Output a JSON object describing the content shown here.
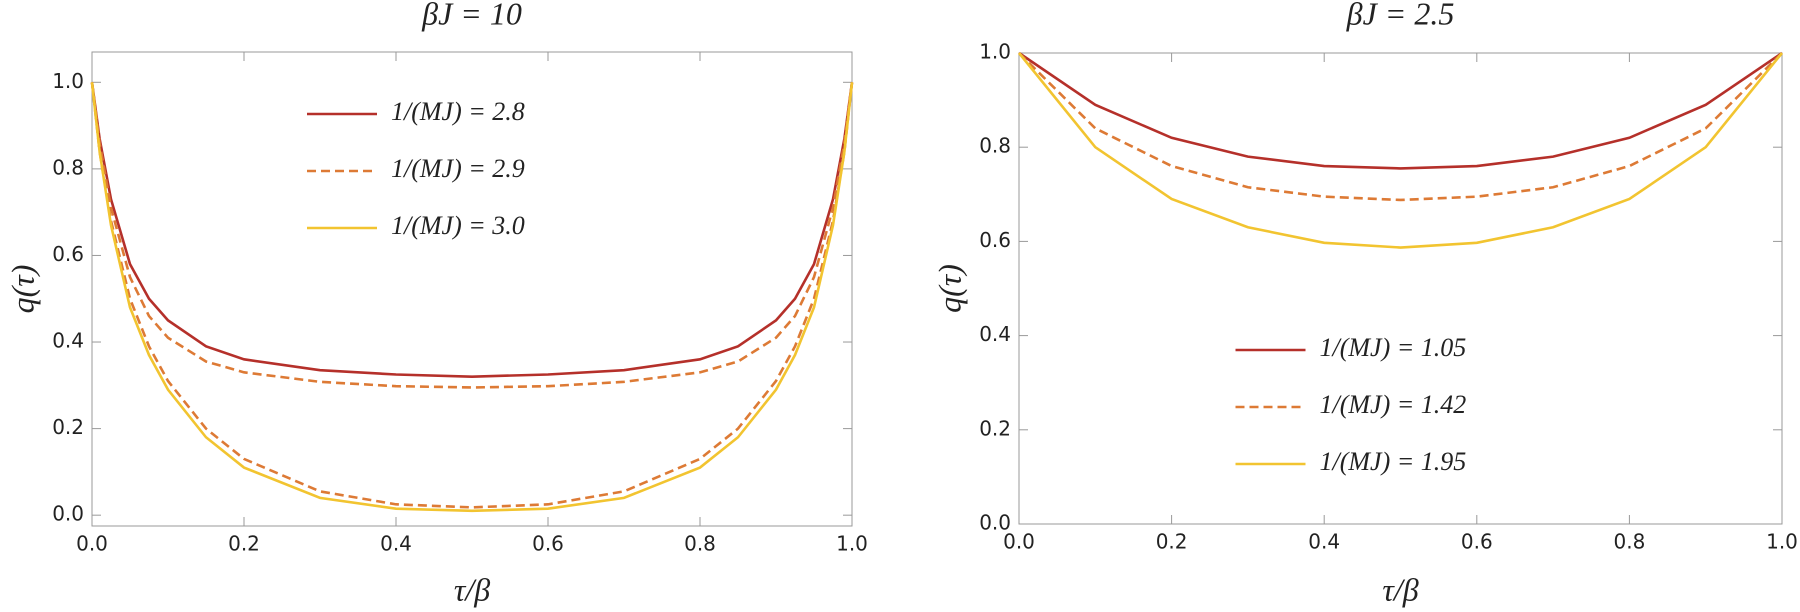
{
  "chart_data": [
    {
      "type": "line",
      "title": "βJ = 10",
      "xlabel": "τ/β",
      "ylabel": "q(τ)",
      "x": [
        0,
        0.01,
        0.025,
        0.05,
        0.075,
        0.1,
        0.15,
        0.2,
        0.3,
        0.4,
        0.5,
        0.6,
        0.7,
        0.8,
        0.85,
        0.9,
        0.925,
        0.95,
        0.975,
        0.99,
        1
      ],
      "xlim": [
        0,
        1
      ],
      "xticks": [
        {
          "value": 0,
          "label": "0.0"
        },
        0.2,
        0.4,
        0.6,
        0.8,
        {
          "value": 1,
          "label": "1.0"
        }
      ],
      "ylim": [
        -0.025,
        1.07
      ],
      "yticks": [
        {
          "value": 0,
          "label": "0.0"
        },
        0.2,
        0.4,
        0.6,
        0.8,
        {
          "value": 1,
          "label": "1.0"
        }
      ],
      "legend": "upper center",
      "series": [
        {
          "name": "1/(MJ) = 2.8",
          "color": "#b5302a",
          "dash": false,
          "values": [
            1,
            0.87,
            0.73,
            0.58,
            0.5,
            0.45,
            0.39,
            0.36,
            0.335,
            0.325,
            0.32,
            0.325,
            0.335,
            0.36,
            0.39,
            0.45,
            0.5,
            0.58,
            0.73,
            0.87,
            1
          ]
        },
        {
          "name": "1/(MJ) = 2.9",
          "color": "#dd7a35",
          "dash": true,
          "values": [
            1,
            0.86,
            0.71,
            0.55,
            0.46,
            0.41,
            0.355,
            0.33,
            0.308,
            0.298,
            0.295,
            0.298,
            0.308,
            0.33,
            0.355,
            0.41,
            0.46,
            0.55,
            0.71,
            0.86,
            1
          ]
        },
        {
          "color": "#dd7a35",
          "dash": true,
          "values": [
            1,
            0.84,
            0.68,
            0.5,
            0.39,
            0.31,
            0.2,
            0.13,
            0.055,
            0.025,
            0.018,
            0.025,
            0.055,
            0.13,
            0.2,
            0.31,
            0.39,
            0.5,
            0.68,
            0.84,
            1
          ]
        },
        {
          "name": "1/(MJ) = 3.0",
          "color": "#f2c430",
          "dash": false,
          "values": [
            1,
            0.84,
            0.67,
            0.48,
            0.37,
            0.29,
            0.18,
            0.11,
            0.04,
            0.015,
            0.01,
            0.015,
            0.04,
            0.11,
            0.18,
            0.29,
            0.37,
            0.48,
            0.67,
            0.84,
            1
          ]
        }
      ]
    },
    {
      "type": "line",
      "title": "βJ = 2.5",
      "xlabel": "τ/β",
      "ylabel": "q(τ)",
      "x": [
        0,
        0.1,
        0.2,
        0.3,
        0.4,
        0.5,
        0.6,
        0.7,
        0.8,
        0.9,
        1
      ],
      "xlim": [
        0,
        1
      ],
      "xticks": [
        {
          "value": 0,
          "label": "0.0"
        },
        0.2,
        0.4,
        0.6,
        0.8,
        {
          "value": 1,
          "label": "1.0"
        }
      ],
      "ylim": [
        0,
        1
      ],
      "yticks": [
        {
          "value": 0,
          "label": "0.0"
        },
        0.2,
        0.4,
        0.6,
        0.8,
        {
          "value": 1,
          "label": "1.0"
        }
      ],
      "legend": "lower center",
      "series": [
        {
          "name": "1/(MJ) = 1.05",
          "color": "#b5302a",
          "dash": false,
          "values": [
            1,
            0.89,
            0.82,
            0.78,
            0.76,
            0.755,
            0.76,
            0.78,
            0.82,
            0.89,
            1
          ]
        },
        {
          "name": "1/(MJ) = 1.42",
          "color": "#dd7a35",
          "dash": true,
          "values": [
            1,
            0.84,
            0.76,
            0.715,
            0.695,
            0.688,
            0.695,
            0.715,
            0.76,
            0.84,
            1
          ]
        },
        {
          "name": "1/(MJ) = 1.95",
          "color": "#f2c430",
          "dash": false,
          "values": [
            1,
            0.8,
            0.69,
            0.63,
            0.597,
            0.587,
            0.597,
            0.63,
            0.69,
            0.8,
            1
          ]
        }
      ]
    }
  ]
}
